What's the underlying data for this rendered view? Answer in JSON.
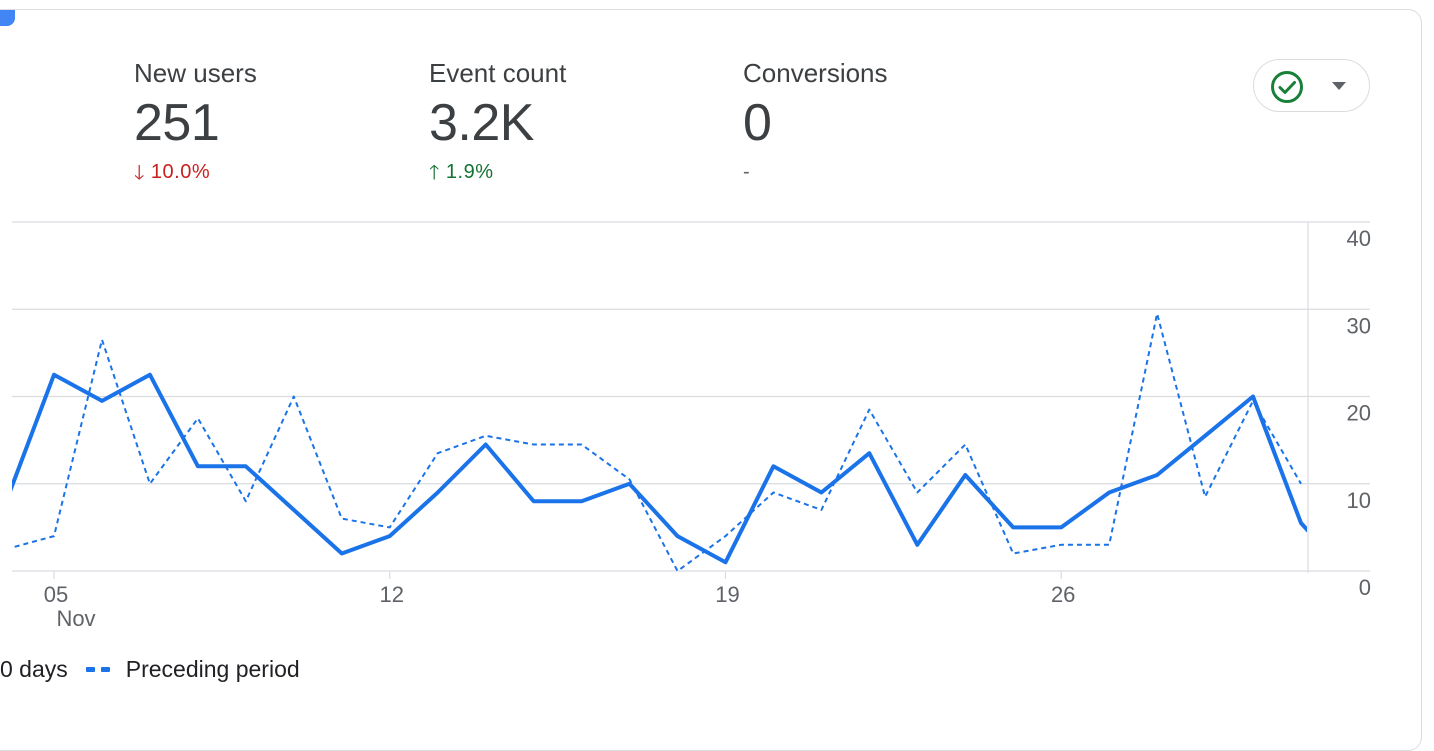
{
  "metrics": [
    {
      "label": "New users",
      "value": "251",
      "delta": "10.0%",
      "direction": "down",
      "arrow_icon": "arrow-down-icon"
    },
    {
      "label": "Event count",
      "value": "3.2K",
      "delta": "1.9%",
      "direction": "up",
      "arrow_icon": "arrow-up-icon"
    },
    {
      "label": "Conversions",
      "value": "0",
      "delta": "-",
      "direction": "neutral"
    }
  ],
  "status_button": {
    "icon": "check-circle-icon",
    "caret_icon": "caret-down-icon",
    "color": "#188038"
  },
  "legend": {
    "current_label": "0 days",
    "preceding_label": "Preceding period"
  },
  "colors": {
    "series": "#1a73e8",
    "grid": "#dadce0",
    "down": "#c5221f",
    "up": "#137333"
  },
  "chart_data": {
    "type": "line",
    "x_tick_labels": [
      {
        "day": 5,
        "label": "05",
        "sub": "Nov"
      },
      {
        "day": 12,
        "label": "12",
        "sub": ""
      },
      {
        "day": 19,
        "label": "19",
        "sub": ""
      },
      {
        "day": 26,
        "label": "26",
        "sub": ""
      }
    ],
    "y_ticks": [
      "40",
      "30",
      "20",
      "10",
      "0"
    ],
    "ylim": [
      0,
      40
    ],
    "xlim": [
      3.8,
      31.7
    ],
    "grid": true,
    "legend_position": "bottom-left",
    "series": [
      {
        "style": "solid",
        "x": [
          3.8,
          5,
          6,
          7,
          8,
          9,
          10,
          11,
          12,
          13,
          14,
          15,
          16,
          17,
          18,
          19,
          20,
          21,
          22,
          23,
          24,
          25,
          26,
          27,
          28,
          29,
          30,
          31,
          31.9
        ],
        "values": [
          5,
          22.5,
          19.5,
          22.5,
          12,
          12,
          7,
          2,
          4,
          9,
          14.5,
          8,
          8,
          10,
          4,
          1,
          12,
          9,
          13.5,
          3,
          11,
          5,
          5,
          9,
          11,
          15.5,
          20,
          5.5,
          0
        ]
      },
      {
        "name": "Preceding period",
        "style": "dashed",
        "x": [
          4,
          5,
          6,
          7,
          8,
          9,
          10,
          11,
          12,
          13,
          14,
          15,
          16,
          17,
          18,
          19,
          20,
          21,
          22,
          23,
          24,
          25,
          26,
          27,
          28,
          29,
          30,
          31
        ],
        "values": [
          2.5,
          4,
          26.5,
          10,
          17.5,
          8,
          20,
          6,
          5,
          13.5,
          15.5,
          14.5,
          14.5,
          10.5,
          0,
          4,
          9,
          7,
          18.5,
          9,
          14.5,
          2,
          3,
          3,
          29.5,
          8.5,
          19.5,
          10
        ]
      }
    ]
  }
}
